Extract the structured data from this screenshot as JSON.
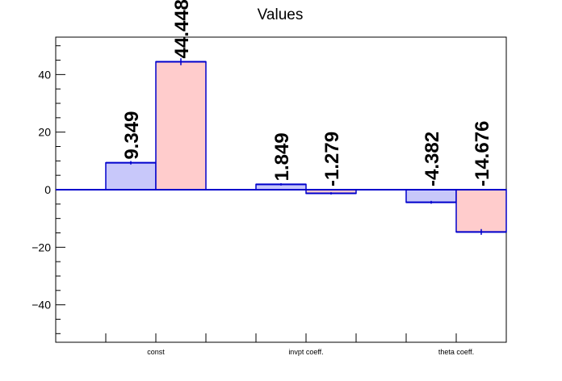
{
  "chart_data": {
    "type": "bar",
    "title": "Values",
    "xlabel": "",
    "ylabel": "",
    "categories": [
      "const",
      "invpt coeff.",
      "theta coeff."
    ],
    "series": [
      {
        "values": [
          9.349,
          1.849,
          -4.382
        ],
        "errors": [
          0.6,
          0.4,
          0.5
        ],
        "labels": [
          "9.349",
          "1.849",
          "-4.382"
        ]
      },
      {
        "values": [
          44.448,
          -1.279,
          -14.676
        ],
        "errors": [
          1.2,
          0.4,
          1.0
        ],
        "labels": [
          "44.448",
          "-1.279",
          "-14.676"
        ]
      }
    ],
    "ylim": [
      -53,
      53
    ],
    "yticks": [
      -40,
      -20,
      0,
      20,
      40
    ],
    "ytick_labels": [
      "−40",
      "−20",
      "0",
      "20",
      "40"
    ],
    "grid": false,
    "legend": "none",
    "colors": {
      "series0_fill": "#c8c8fa",
      "series1_fill": "#ffcccc",
      "edge": "#0000cc",
      "axis": "#000000"
    }
  }
}
